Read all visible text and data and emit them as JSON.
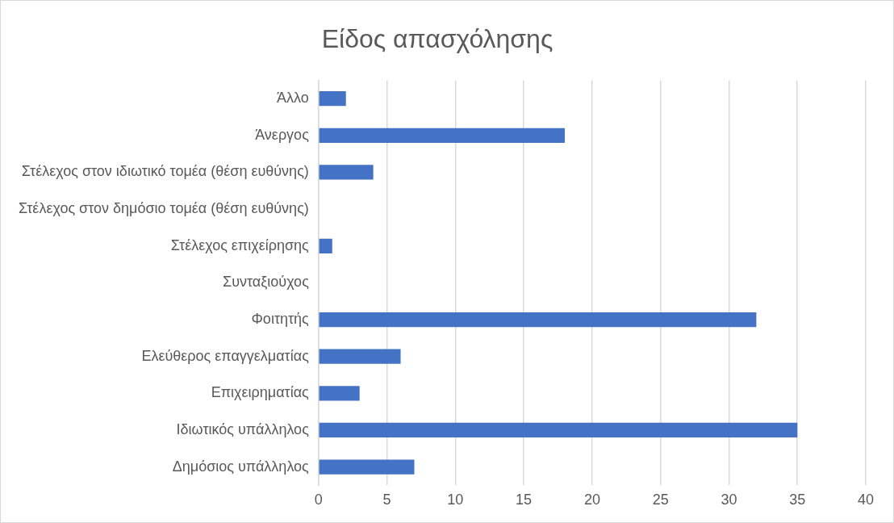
{
  "chart_data": {
    "type": "bar",
    "title": "Είδος απασχόλησης",
    "orientation": "horizontal",
    "categories": [
      "Άλλο",
      "Άνεργος",
      "Στέλεχος στον ιδιωτικό τομέα (θέση ευθύνης)",
      "Στέλεχος στον δημόσιο τομέα (θέση ευθύνης)",
      "Στέλεχος επιχείρησης",
      "Συνταξιούχος",
      "Φοιτητής",
      "Ελεύθερος επαγγελματίας",
      "Επιχειρηματίας",
      "Ιδιωτικός υπάλληλος",
      "Δημόσιος υπάλληλος"
    ],
    "values": [
      2,
      18,
      4,
      0,
      1,
      0,
      32,
      6,
      3,
      35,
      7
    ],
    "color": "#4472c4",
    "xlim": [
      0,
      40
    ],
    "xticks": [
      0,
      5,
      10,
      15,
      20,
      25,
      30,
      35,
      40
    ],
    "grid": "x"
  }
}
